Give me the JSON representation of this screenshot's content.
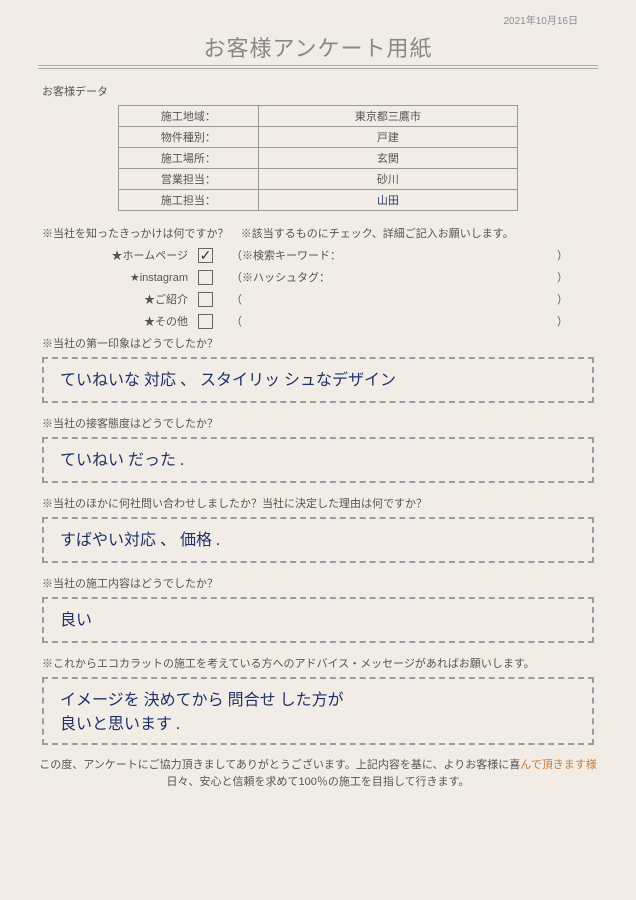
{
  "date": "2021年10月16日",
  "title": "お客様アンケート用紙",
  "section_customer_data": "お客様データ",
  "table": {
    "rows": [
      {
        "label": "施工地域：",
        "value": "東京都三鷹市"
      },
      {
        "label": "物件種別：",
        "value": "戸建"
      },
      {
        "label": "施工場所：",
        "value": "玄関"
      },
      {
        "label": "営業担当：",
        "value": "砂川"
      },
      {
        "label": "施工担当：",
        "value": "山田",
        "handwritten": true
      }
    ]
  },
  "q1": {
    "prompt_left": "※当社を知ったきっかけは何ですか？",
    "prompt_right": "※該当するものにチェック、詳細ご記入お願いします。",
    "options": [
      {
        "label": "★ホームページ",
        "hint": "（※検索キーワード：",
        "checked": true
      },
      {
        "label": "★instagram",
        "hint": "（※ハッシュタグ：",
        "checked": false
      },
      {
        "label": "★ご紹介",
        "hint": "（",
        "checked": false
      },
      {
        "label": "★その他",
        "hint": "（",
        "checked": false
      }
    ],
    "close_paren": "）"
  },
  "q2": {
    "prompt": "※当社の第一印象はどうでしたか？",
    "answer": "ていねいな 対応 、 スタイリッ シュなデザイン"
  },
  "q3": {
    "prompt": "※当社の接客態度はどうでしたか？",
    "answer": "ていねい だった ."
  },
  "q4": {
    "prompt": "※当社のほかに何社問い合わせしましたか？当社に決定した理由は何ですか？",
    "answer": "すばやい対応 、 価格 ."
  },
  "q5": {
    "prompt": "※当社の施工内容はどうでしたか？",
    "answer": "良い"
  },
  "q6": {
    "prompt": "※これからエコカラットの施工を考えている方へのアドバイス・メッセージがあればお願いします。",
    "answer": "イメージを 決めてから 問合せ した方が\n良いと思います ."
  },
  "footer": {
    "line1_a": "この度、アンケートにご協力頂きましてありがとうございます。上記内容を基に、よりお客様に喜",
    "line1_b": "んで頂きます様",
    "line2": "日々、安心と信頼を求めて100％の施工を目指して行きます。"
  },
  "colors": {
    "paper": "#f1ede6",
    "ink": "#555",
    "pen": "#20306a",
    "accent": "#c97a3a"
  }
}
